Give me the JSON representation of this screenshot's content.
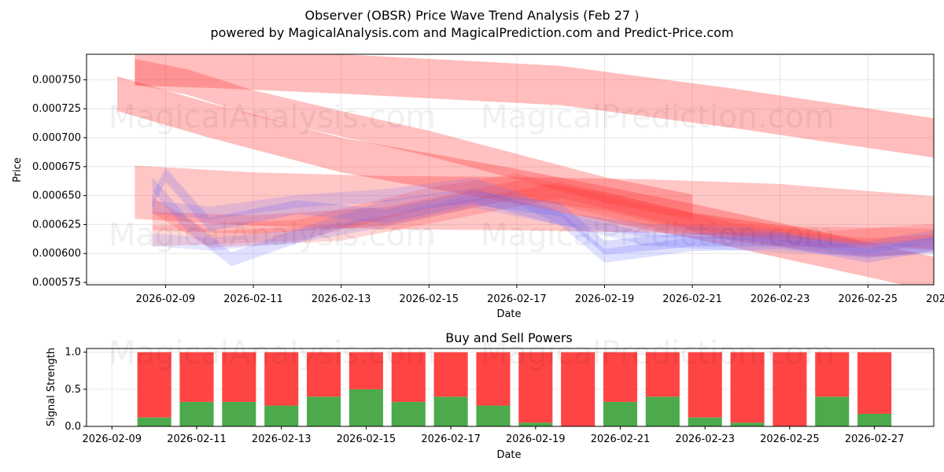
{
  "header": {
    "title": "Observer (OBSR) Price Wave Trend Analysis (Feb 27 )",
    "subtitle": "powered by MagicalAnalysis.com and MagicalPrediction.com and Predict-Price.com"
  },
  "watermarks": [
    "MagicalAnalysis.com",
    "MagicalPrediction.com"
  ],
  "colors": {
    "sell": "#ff4444",
    "buy": "#4caa4c",
    "red_band": "#ff3333",
    "blue_band": "#6666ff",
    "grid": "#e6e6e6"
  },
  "chart_data": [
    {
      "type": "area",
      "title": "",
      "xlabel": "Date",
      "ylabel": "Price",
      "x_start": "2026-02-08",
      "xlim": [
        -0.8,
        18.5
      ],
      "ylim": [
        0.000573,
        0.000772
      ],
      "yticks": [
        0.000575,
        0.0006,
        0.000625,
        0.00065,
        0.000675,
        0.0007,
        0.000725,
        0.00075
      ],
      "ytick_labels": [
        "0.000575",
        "0.000600",
        "0.000625",
        "0.000650",
        "0.000675",
        "0.000700",
        "0.000725",
        "0.000750"
      ],
      "xticks": [
        1,
        3,
        5,
        7,
        9,
        11,
        13,
        15,
        17,
        19
      ],
      "xtick_labels": [
        "2026-02-09",
        "2026-02-11",
        "2026-02-13",
        "2026-02-15",
        "2026-02-17",
        "2026-02-19",
        "2026-02-21",
        "2026-02-23",
        "2026-02-25",
        "2026-02-27"
      ],
      "grid": true,
      "series": [
        {
          "name": "long-red-upper",
          "color": "red",
          "opacity": 0.32,
          "width": 3.4e-05,
          "x": [
            0.3,
            2,
            5,
            10,
            14,
            19
          ],
          "y": [
            0.000762,
            0.00076,
            0.000755,
            0.000745,
            0.000725,
            0.000697
          ]
        },
        {
          "name": "long-red-lower",
          "color": "red",
          "opacity": 0.32,
          "width": 3e-05,
          "x": [
            -0.1,
            2,
            5,
            9,
            13,
            16,
            19
          ],
          "y": [
            0.000738,
            0.000715,
            0.000685,
            0.000658,
            0.000628,
            0.000603,
            0.000578
          ]
        },
        {
          "name": "red-dark-wedge",
          "color": "red",
          "opacity": 0.3,
          "width": 2.2e-05,
          "x": [
            0.3,
            1.5,
            3,
            5,
            7,
            9,
            11,
            13
          ],
          "y": [
            0.000757,
            0.000748,
            0.00073,
            0.000712,
            0.000695,
            0.000675,
            0.000655,
            0.00064
          ]
        },
        {
          "name": "red-flat-wide",
          "color": "red",
          "opacity": 0.28,
          "width": 4.6e-05,
          "x": [
            0.3,
            3,
            6,
            9,
            12,
            15,
            19
          ],
          "y": [
            0.000653,
            0.000647,
            0.000644,
            0.000643,
            0.000641,
            0.000637,
            0.000625
          ]
        },
        {
          "name": "red-mid-1",
          "color": "red",
          "opacity": 0.22,
          "width": 1.6e-05,
          "x": [
            0.7,
            3,
            6,
            9,
            11,
            14,
            17,
            19
          ],
          "y": [
            0.000628,
            0.000625,
            0.000632,
            0.000655,
            0.000645,
            0.000618,
            0.000605,
            0.00061
          ]
        },
        {
          "name": "red-mid-2",
          "color": "red",
          "opacity": 0.2,
          "width": 1.4e-05,
          "x": [
            0.7,
            2,
            5,
            8,
            10,
            13,
            16,
            19
          ],
          "y": [
            0.000642,
            0.000612,
            0.000618,
            0.00064,
            0.000655,
            0.000628,
            0.000612,
            0.00062
          ]
        },
        {
          "name": "red-mid-3",
          "color": "red",
          "opacity": 0.18,
          "width": 1.8e-05,
          "x": [
            0.7,
            4,
            7,
            9,
            12,
            15,
            19
          ],
          "y": [
            0.000615,
            0.00062,
            0.000648,
            0.00066,
            0.000632,
            0.000615,
            0.000612
          ]
        },
        {
          "name": "blue-1",
          "color": "blue",
          "opacity": 0.22,
          "width": 1.2e-05,
          "x": [
            0.7,
            1,
            2,
            4,
            6,
            8,
            10,
            11,
            13,
            15,
            17,
            19
          ],
          "y": [
            0.000645,
            0.000668,
            0.000625,
            0.00064,
            0.000632,
            0.000648,
            0.000638,
            0.000605,
            0.000612,
            0.000612,
            0.000598,
            0.000612
          ]
        },
        {
          "name": "blue-2",
          "color": "blue",
          "opacity": 0.2,
          "width": 1.2e-05,
          "x": [
            0.7,
            1.5,
            2.5,
            4,
            6,
            8,
            10,
            11,
            13,
            15,
            17,
            19
          ],
          "y": [
            0.00066,
            0.000625,
            0.000595,
            0.000615,
            0.00064,
            0.00065,
            0.00063,
            0.000598,
            0.000608,
            0.00061,
            0.000602,
            0.00061
          ]
        },
        {
          "name": "blue-3",
          "color": "blue",
          "opacity": 0.18,
          "width": 1.1e-05,
          "x": [
            0.7,
            2,
            4,
            6,
            8,
            9,
            10,
            12,
            14,
            17,
            19
          ],
          "y": [
            0.00064,
            0.000635,
            0.000645,
            0.00065,
            0.00066,
            0.000648,
            0.00063,
            0.00062,
            0.000618,
            0.000605,
            0.000618
          ]
        },
        {
          "name": "blue-4",
          "color": "blue",
          "opacity": 0.16,
          "width": 1.1e-05,
          "x": [
            0.7,
            2,
            4,
            6,
            8,
            10,
            12,
            14,
            17,
            19
          ],
          "y": [
            0.000612,
            0.000608,
            0.000615,
            0.000628,
            0.000645,
            0.00063,
            0.000612,
            0.000608,
            0.000603,
            0.000605
          ]
        }
      ]
    },
    {
      "type": "bar",
      "title": "Buy and Sell Powers",
      "xlabel": "Date",
      "ylabel": "Signal Strength",
      "x_start": "2026-02-09",
      "xlim": [
        -0.6,
        19.4
      ],
      "ylim": [
        0,
        1.05
      ],
      "yticks": [
        0.0,
        0.5,
        1.0
      ],
      "ytick_labels": [
        "0.0",
        "0.5",
        "1.0"
      ],
      "xticks": [
        0,
        2,
        4,
        6,
        8,
        10,
        12,
        14,
        16,
        18
      ],
      "xtick_labels": [
        "2026-02-09",
        "2026-02-11",
        "2026-02-13",
        "2026-02-15",
        "2026-02-17",
        "2026-02-19",
        "2026-02-21",
        "2026-02-23",
        "2026-02-25",
        "2026-02-27"
      ],
      "grid": true,
      "categories": [
        "2026-02-10",
        "2026-02-11",
        "2026-02-12",
        "2026-02-13",
        "2026-02-14",
        "2026-02-15",
        "2026-02-16",
        "2026-02-17",
        "2026-02-18",
        "2026-02-19",
        "2026-02-20",
        "2026-02-21",
        "2026-02-22",
        "2026-02-23",
        "2026-02-24",
        "2026-02-25",
        "2026-02-26",
        "2026-02-27"
      ],
      "series": [
        {
          "name": "Buy",
          "values": [
            0.12,
            0.33,
            0.33,
            0.28,
            0.4,
            0.5,
            0.33,
            0.4,
            0.28,
            0.05,
            0.0,
            0.33,
            0.4,
            0.12,
            0.05,
            0.0,
            0.4,
            0.17
          ]
        },
        {
          "name": "Sell",
          "values": [
            0.88,
            0.67,
            0.67,
            0.72,
            0.6,
            0.5,
            0.67,
            0.6,
            0.72,
            0.95,
            1.0,
            0.67,
            0.6,
            0.88,
            0.95,
            1.0,
            0.6,
            0.83
          ]
        }
      ]
    }
  ]
}
